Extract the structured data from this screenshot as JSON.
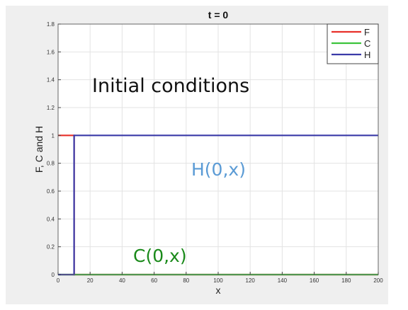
{
  "chart_data": {
    "type": "line",
    "title": "t = 0",
    "xlabel": "x",
    "ylabel": "F, C and H",
    "xlim": [
      0,
      200
    ],
    "ylim": [
      0,
      1.8
    ],
    "xticks": [
      0,
      20,
      40,
      60,
      80,
      100,
      120,
      140,
      160,
      180,
      200
    ],
    "yticks": [
      0,
      0.2,
      0.4,
      0.6,
      0.8,
      1,
      1.2,
      1.4,
      1.6,
      1.8
    ],
    "grid": true,
    "legend_position": "top-right",
    "series": [
      {
        "name": "F",
        "color": "#e8302a",
        "x": [
          0,
          10,
          10,
          200
        ],
        "y": [
          1,
          1,
          0,
          0
        ]
      },
      {
        "name": "C",
        "color": "#3cc43c",
        "x": [
          0,
          10,
          10,
          200
        ],
        "y": [
          0,
          0,
          0,
          0
        ]
      },
      {
        "name": "H",
        "color": "#3a3aa8",
        "x": [
          0,
          10,
          10,
          200
        ],
        "y": [
          0,
          0,
          1,
          1
        ]
      }
    ],
    "annotations": [
      {
        "text": "Initial conditions",
        "color": "#111111"
      },
      {
        "text": "H(0,x)",
        "color": "#5b9bd5"
      },
      {
        "text": "C(0,x)",
        "color": "#1a8a1a"
      }
    ]
  }
}
